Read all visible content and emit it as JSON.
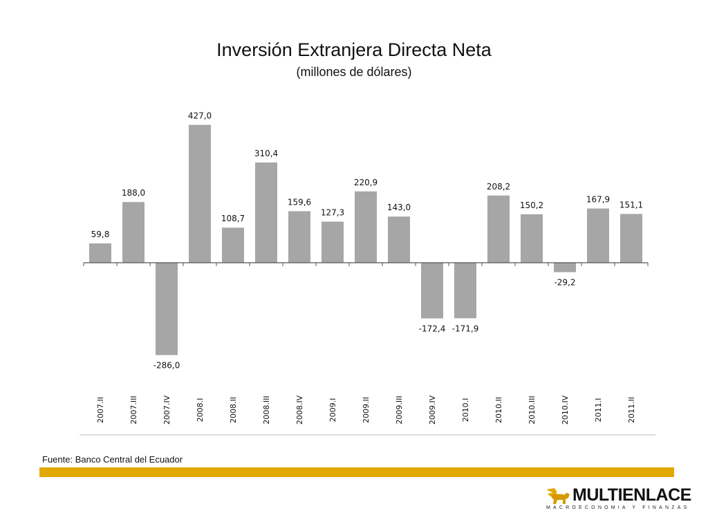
{
  "slide": {
    "source_note": "Fuente: Banco Central del Ecuador",
    "accent_color": "#e0a800",
    "logo": {
      "icon": "winged-lion-icon",
      "name": "MULTIENLACE",
      "tagline": "MACROECONOMIA Y FINANZAS"
    }
  },
  "chart_data": {
    "type": "bar",
    "title": "Inversión Extranjera Directa Neta",
    "subtitle": "(millones de dólares)",
    "xlabel": "",
    "ylabel": "",
    "ylim": [
      -300,
      440
    ],
    "grid": false,
    "legend": "none",
    "bar_color": "#a6a6a6",
    "categories": [
      "2007.II",
      "2007.III",
      "2007.IV",
      "2008.I",
      "2008.II",
      "2008.III",
      "2008.IV",
      "2009.I",
      "2009.II",
      "2009.III",
      "2009.IV",
      "2010.I",
      "2010.II",
      "2010.III",
      "2010.IV",
      "2011.I",
      "2011.II"
    ],
    "values": [
      59.8,
      188.0,
      -286.0,
      427.0,
      108.7,
      310.4,
      159.6,
      127.3,
      220.9,
      143.0,
      -172.4,
      -171.9,
      208.2,
      150.2,
      -29.2,
      167.9,
      151.1
    ],
    "data_labels": [
      "59,8",
      "188,0",
      "-286,0",
      "427,0",
      "108,7",
      "310,4",
      "159,6",
      "127,3",
      "220,9",
      "143,0",
      "-172,4",
      "-171,9",
      "208,2",
      "150,2",
      "-29,2",
      "167,9",
      "151,1"
    ]
  }
}
